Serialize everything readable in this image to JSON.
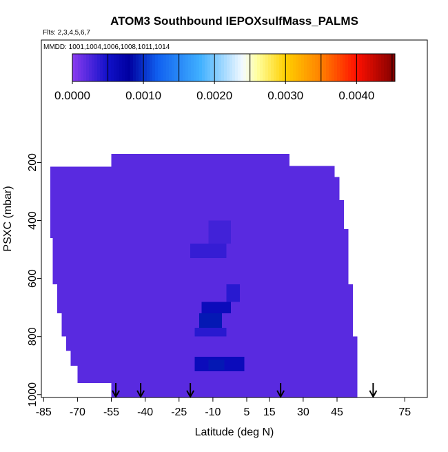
{
  "chart_data": {
    "type": "heatmap",
    "title": "ATOM3 Southbound IEPOXsulfMass_PALMS",
    "subtitle": "Flts: 2,3,4,5,6,7",
    "annotation": "MMDD: 1001,1004,1006,1008,1011,1014",
    "x_label": "Latitude (deg N)",
    "y_label": "PSXC (mbar)",
    "xlim": [
      -86,
      85
    ],
    "ylim": [
      1010,
      -222
    ],
    "xticks": [
      -85,
      -70,
      -55,
      -40,
      -25,
      -10,
      5,
      15,
      30,
      45,
      75
    ],
    "yticks": [
      200,
      400,
      600,
      800,
      1000
    ],
    "colorbar_lim": [
      0,
      0.00454
    ],
    "colorbar_ticks": [
      {
        "value": 0,
        "label": "0.0000"
      },
      {
        "value": 0.001,
        "label": "0.0010"
      },
      {
        "value": 0.002,
        "label": "0.0020"
      },
      {
        "value": 0.003,
        "label": "0.0030"
      },
      {
        "value": 0.004,
        "label": "0.0040"
      }
    ],
    "colorbar_breaks": [
      0.0005,
      0.001,
      0.0015,
      0.002,
      0.0025,
      0.003,
      0.0035,
      0.004,
      0.0045
    ],
    "colorscale": [
      [
        0,
        "#8a3cf0"
      ],
      [
        0.0005,
        "#1010c8"
      ],
      [
        0.0008,
        "#0000a0"
      ],
      [
        0.0012,
        "#1060f0"
      ],
      [
        0.0018,
        "#40b0ff"
      ],
      [
        0.0024,
        "#f4faff"
      ],
      [
        0.0026,
        "#ffffa0"
      ],
      [
        0.003,
        "#ffd000"
      ],
      [
        0.0035,
        "#ff8000"
      ],
      [
        0.004,
        "#ff1000"
      ],
      [
        0.00454,
        "#800000"
      ]
    ],
    "cells": [
      {
        "lat": [
          -82,
          -81
        ],
        "p": [
          215,
          460
        ],
        "value": 0.0002
      },
      {
        "lat": [
          -81,
          -79
        ],
        "p": [
          215,
          620
        ],
        "value": 0.0002
      },
      {
        "lat": [
          -79,
          -77
        ],
        "p": [
          215,
          720
        ],
        "value": 0.0002
      },
      {
        "lat": [
          -77,
          -75
        ],
        "p": [
          215,
          800
        ],
        "value": 0.0002
      },
      {
        "lat": [
          -75,
          -73
        ],
        "p": [
          215,
          850
        ],
        "value": 0.0002
      },
      {
        "lat": [
          -73,
          -70
        ],
        "p": [
          215,
          900
        ],
        "value": 0.0002
      },
      {
        "lat": [
          -70,
          -66
        ],
        "p": [
          215,
          960
        ],
        "value": 0.0002
      },
      {
        "lat": [
          -66,
          -55
        ],
        "p": [
          215,
          960
        ],
        "value": 0.0002
      },
      {
        "lat": [
          -55,
          24
        ],
        "p": [
          170,
          1010
        ],
        "value": 0.0002
      },
      {
        "lat": [
          24,
          44
        ],
        "p": [
          212,
          1010
        ],
        "value": 0.0002
      },
      {
        "lat": [
          44,
          46
        ],
        "p": [
          250,
          1010
        ],
        "value": 0.0002
      },
      {
        "lat": [
          46,
          48
        ],
        "p": [
          330,
          1010
        ],
        "value": 0.0002
      },
      {
        "lat": [
          48,
          50
        ],
        "p": [
          430,
          1010
        ],
        "value": 0.0002
      },
      {
        "lat": [
          50,
          52
        ],
        "p": [
          620,
          1010
        ],
        "value": 0.0002
      },
      {
        "lat": [
          52,
          54
        ],
        "p": [
          800,
          1010
        ],
        "value": 0.0002
      },
      {
        "lat": [
          -12,
          -2
        ],
        "p": [
          400,
          480
        ],
        "value": 0.0003
      },
      {
        "lat": [
          -20,
          -4
        ],
        "p": [
          480,
          530
        ],
        "value": 0.00035
      },
      {
        "lat": [
          -4,
          2
        ],
        "p": [
          620,
          680
        ],
        "value": 0.0004
      },
      {
        "lat": [
          -15,
          -2
        ],
        "p": [
          680,
          720
        ],
        "value": 0.0006
      },
      {
        "lat": [
          -16,
          -6
        ],
        "p": [
          720,
          770
        ],
        "value": 0.0009
      },
      {
        "lat": [
          -18,
          -4
        ],
        "p": [
          770,
          800
        ],
        "value": 0.0004
      },
      {
        "lat": [
          -18,
          4
        ],
        "p": [
          870,
          920
        ],
        "value": 0.0006
      },
      {
        "lat": [
          -12,
          -5
        ],
        "p": [
          880,
          915
        ],
        "value": 0.0009
      }
    ],
    "arrows": [
      -53,
      -42,
      -20,
      20,
      61
    ]
  }
}
